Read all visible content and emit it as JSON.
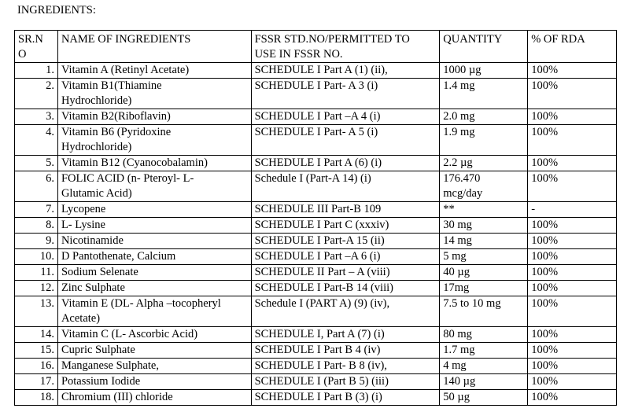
{
  "title": "INGREDIENTS:",
  "table": {
    "header": [
      "SR.N\nO",
      "NAME OF INGREDIENTS",
      "FSSR STD.NO/PERMITTED TO\nUSE IN FSSR NO.",
      "QUANTITY",
      "% OF RDA"
    ],
    "rows": [
      [
        "1.",
        "Vitamin A (Retinyl Acetate)",
        "SCHEDULE I Part A (1) (ii),",
        "1000 µg",
        "100%"
      ],
      [
        "2.",
        "Vitamin B1(Thiamine\nHydrochloride)",
        "SCHEDULE I Part- A 3 (i)",
        "1.4 mg",
        "100%"
      ],
      [
        "3.",
        "Vitamin B2(Riboflavin)",
        "SCHEDULE I Part –A 4 (i)",
        "2.0 mg",
        "100%"
      ],
      [
        "4.",
        "Vitamin B6 (Pyridoxine\nHydrochloride)",
        "SCHEDULE I Part- A 5 (i)",
        "1.9 mg",
        "100%"
      ],
      [
        "5.",
        "Vitamin B12 (Cyanocobalamin)",
        "SCHEDULE I Part A (6) (i)",
        "2.2 µg",
        "100%"
      ],
      [
        "6.",
        "FOLIC ACID (n- Pteroyl- L-\nGlutamic Acid)",
        "Schedule I (Part-A 14) (i)",
        "176.470\nmcg/day",
        "100%"
      ],
      [
        "7.",
        "Lycopene",
        "SCHEDULE III Part-B 109",
        "**",
        "-"
      ],
      [
        "8.",
        "L- Lysine",
        "SCHEDULE I Part C (xxxiv)",
        "30 mg",
        "100%"
      ],
      [
        "9.",
        "Nicotinamide",
        "SCHEDULE I Part-A 15 (ii)",
        "14 mg",
        "100%"
      ],
      [
        "10.",
        "D Pantothenate, Calcium",
        "SCHEDULE I Part –A 6 (i)",
        "5 mg",
        "100%"
      ],
      [
        "11.",
        "Sodium Selenate",
        "SCHEDULE II Part – A (viii)",
        "40 µg",
        "100%"
      ],
      [
        "12.",
        "Zinc Sulphate",
        "SCHEDULE I Part-B 14 (viii)",
        "17mg",
        "100%"
      ],
      [
        "13.",
        "Vitamin E (DL- Alpha –tocopheryl\nAcetate)",
        "Schedule I (PART A) (9) (iv),",
        "7.5 to 10 mg",
        "100%"
      ],
      [
        "14.",
        "Vitamin C (L- Ascorbic Acid)",
        "SCHEDULE I, Part A (7) (i)",
        "80 mg",
        "100%"
      ],
      [
        "15.",
        "Cupric Sulphate",
        "SCHEDULE I Part B 4 (iv)",
        "1.7 mg",
        "100%"
      ],
      [
        "16.",
        "Manganese Sulphate,",
        "SCHEDULE I Part- B 8 (iv),",
        "4 mg",
        "100%"
      ],
      [
        "17.",
        "Potassium Iodide",
        "SCHEDULE I (Part B 5) (iii)",
        "140 µg",
        "100%"
      ],
      [
        "18.",
        "Chromium (III) chloride",
        "SCHEDULE I Part B (3) (i)",
        "50 µg",
        "100%"
      ]
    ]
  }
}
